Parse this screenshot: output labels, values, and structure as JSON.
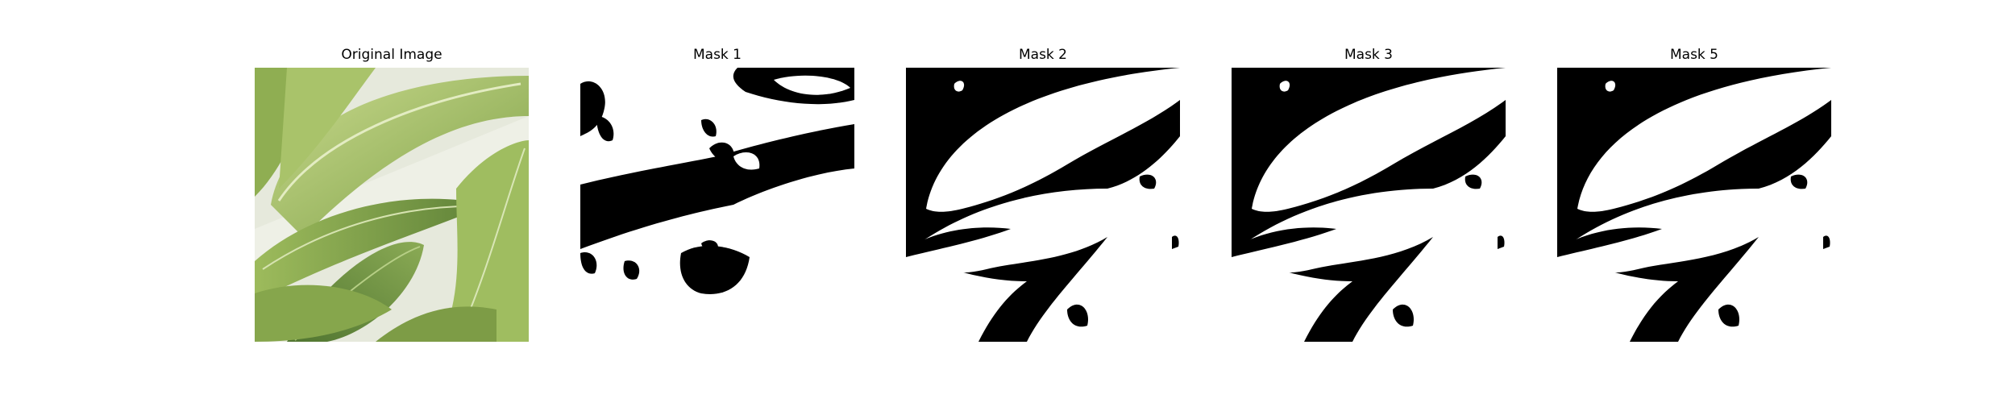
{
  "figure": {
    "panels": [
      {
        "title": "Original Image",
        "kind": "photo",
        "subject": "green leaves"
      },
      {
        "title": "Mask 1",
        "kind": "mask"
      },
      {
        "title": "Mask 2",
        "kind": "mask"
      },
      {
        "title": "Mask 3",
        "kind": "mask"
      },
      {
        "title": "Mask 5",
        "kind": "mask"
      }
    ],
    "colors": {
      "mask_foreground": "#ffffff",
      "mask_background": "#000000",
      "leaf_light": "#b9cf7a",
      "leaf_mid": "#8fae52",
      "leaf_dark": "#5f7f3a",
      "backdrop": "#e9ece0"
    }
  }
}
